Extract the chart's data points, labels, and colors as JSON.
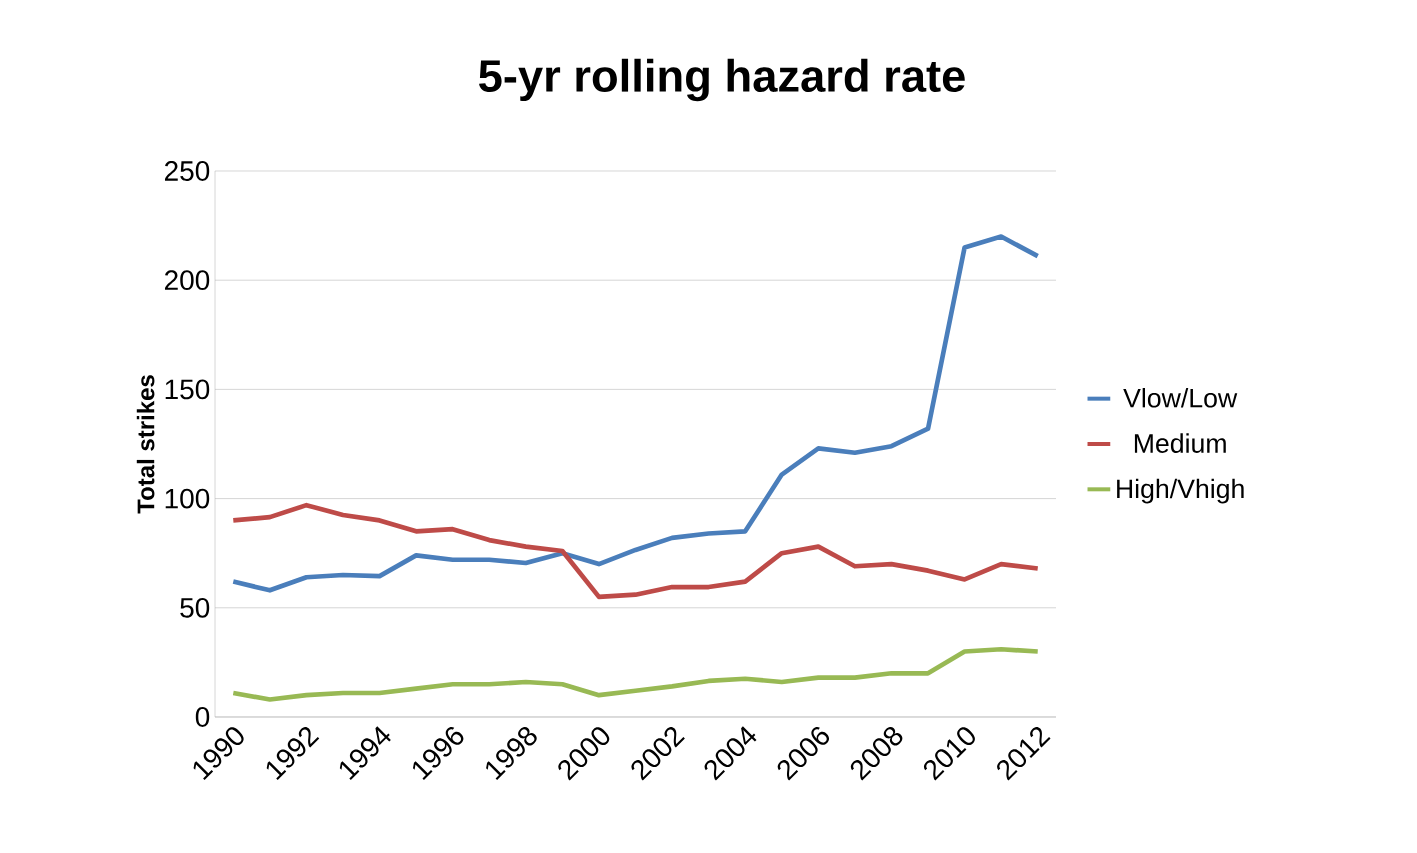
{
  "chart_data": {
    "type": "line",
    "title": "5-yr rolling hazard rate",
    "ylabel": "Total strikes",
    "x": [
      1990,
      1991,
      1992,
      1993,
      1994,
      1995,
      1996,
      1997,
      1998,
      1999,
      2000,
      2001,
      2002,
      2003,
      2004,
      2005,
      2006,
      2007,
      2008,
      2009,
      2010,
      2011,
      2012
    ],
    "series": [
      {
        "name": "Vlow/Low",
        "color": "#4a7ebb",
        "values": [
          62,
          58,
          64,
          65,
          64.5,
          74,
          72,
          72,
          70.5,
          75,
          70,
          76.5,
          82,
          84,
          85,
          111,
          123,
          121,
          124,
          132,
          215,
          220,
          211
        ]
      },
      {
        "name": "Medium",
        "color": "#be4b48",
        "values": [
          90,
          91.5,
          97,
          92.5,
          90,
          85,
          86,
          81,
          78,
          76,
          55,
          56,
          59.5,
          59.5,
          62,
          75,
          78,
          69,
          70,
          67,
          63,
          70,
          68
        ]
      },
      {
        "name": "High/Vhigh",
        "color": "#98b954",
        "values": [
          11,
          8,
          10,
          11,
          11,
          13,
          15,
          15,
          16,
          15,
          10,
          12,
          14,
          16.5,
          17.5,
          16,
          18,
          18,
          20,
          20,
          30,
          31,
          30
        ]
      }
    ],
    "xlim": [
      1989.5,
      2012.5
    ],
    "xticks": [
      1990,
      1992,
      1994,
      1996,
      1998,
      2000,
      2002,
      2004,
      2006,
      2008,
      2010,
      2012
    ],
    "ylim": [
      0,
      250
    ],
    "yticks": [
      0,
      50,
      100,
      150,
      200,
      250
    ],
    "grid": "y",
    "legend": "right",
    "marker": "none",
    "line_style": "solid"
  }
}
